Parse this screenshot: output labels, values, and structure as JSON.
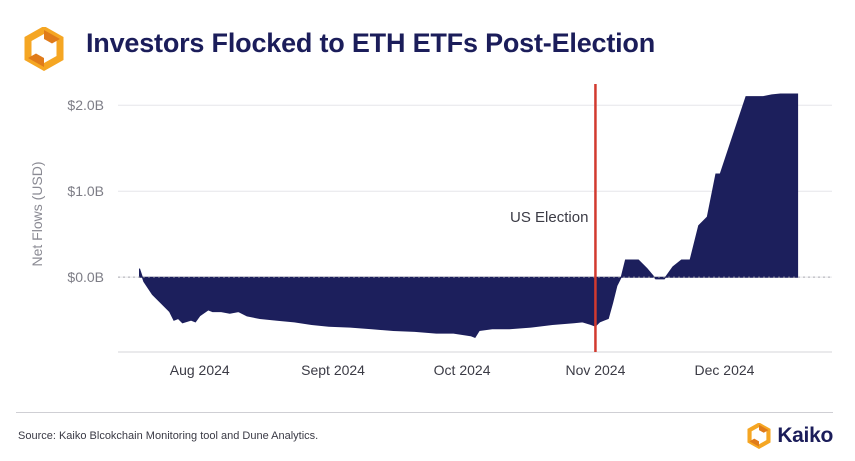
{
  "header": {
    "title": "Investors Flocked to ETH ETFs Post-Election",
    "logo_icon": "kaiko-hexagon-icon"
  },
  "footer": {
    "source": "Source: Kaiko Blcokchain Monitoring tool and Dune Analytics.",
    "brand_name": "Kaiko",
    "brand_icon": "kaiko-hexagon-icon"
  },
  "colors": {
    "fill": "#1c1f5c",
    "election_line": "#d23a2f",
    "logo_orange": "#f5a623",
    "logo_dark_orange": "#e07b1a"
  },
  "chart_data": {
    "type": "area",
    "ylabel": "Net Flows  (USD)",
    "ylim": [
      -0.87,
      2.2
    ],
    "yticks": [
      {
        "value": 0,
        "label": "$0.0B"
      },
      {
        "value": 1,
        "label": "$1.0B"
      },
      {
        "value": 2,
        "label": "$2.0B"
      }
    ],
    "xlim": [
      "2024-07-18",
      "2024-12-31"
    ],
    "xticks": [
      {
        "date": "2024-08-06",
        "label": "Aug 2024"
      },
      {
        "date": "2024-09-06",
        "label": "Sept 2024"
      },
      {
        "date": "2024-10-06",
        "label": "Oct 2024"
      },
      {
        "date": "2024-11-06",
        "label": "Nov 2024"
      },
      {
        "date": "2024-12-06",
        "label": "Dec 2024"
      }
    ],
    "grid": "horizontal",
    "annotation": {
      "date": "2024-11-06",
      "label": "US Election"
    },
    "series": [
      {
        "x": [
          "2024-07-23",
          "2024-07-24",
          "2024-07-26",
          "2024-07-28",
          "2024-07-30",
          "2024-07-31",
          "2024-08-01",
          "2024-08-02",
          "2024-08-04",
          "2024-08-05",
          "2024-08-06",
          "2024-08-08",
          "2024-08-09",
          "2024-08-11",
          "2024-08-13",
          "2024-08-15",
          "2024-08-17",
          "2024-08-20",
          "2024-08-24",
          "2024-08-28",
          "2024-09-01",
          "2024-09-05",
          "2024-09-10",
          "2024-09-15",
          "2024-09-20",
          "2024-09-25",
          "2024-09-30",
          "2024-10-04",
          "2024-10-08",
          "2024-10-09",
          "2024-10-10",
          "2024-10-13",
          "2024-10-17",
          "2024-10-22",
          "2024-10-27",
          "2024-11-01",
          "2024-11-03",
          "2024-11-05",
          "2024-11-06",
          "2024-11-07",
          "2024-11-08",
          "2024-11-09",
          "2024-11-10",
          "2024-11-11",
          "2024-11-12",
          "2024-11-13",
          "2024-11-16",
          "2024-11-18",
          "2024-11-20",
          "2024-11-22",
          "2024-11-24",
          "2024-11-26",
          "2024-11-28",
          "2024-11-30",
          "2024-12-02",
          "2024-12-04",
          "2024-12-05",
          "2024-12-07",
          "2024-12-09",
          "2024-12-11",
          "2024-12-13",
          "2024-12-15",
          "2024-12-17",
          "2024-12-19",
          "2024-12-21",
          "2024-12-22",
          "2024-12-23"
        ],
        "y": [
          0.1,
          -0.05,
          -0.2,
          -0.3,
          -0.4,
          -0.5,
          -0.48,
          -0.53,
          -0.5,
          -0.52,
          -0.45,
          -0.38,
          -0.4,
          -0.4,
          -0.42,
          -0.4,
          -0.45,
          -0.48,
          -0.5,
          -0.52,
          -0.55,
          -0.57,
          -0.58,
          -0.6,
          -0.62,
          -0.63,
          -0.65,
          -0.65,
          -0.68,
          -0.7,
          -0.62,
          -0.6,
          -0.6,
          -0.58,
          -0.55,
          -0.53,
          -0.52,
          -0.55,
          -0.57,
          -0.52,
          -0.5,
          -0.48,
          -0.3,
          -0.1,
          0.0,
          0.2,
          0.2,
          0.1,
          -0.02,
          -0.02,
          0.12,
          0.2,
          0.2,
          0.6,
          0.7,
          1.2,
          1.2,
          1.5,
          1.8,
          2.1,
          2.1,
          2.1,
          2.12,
          2.13,
          2.13,
          2.13,
          2.13
        ]
      }
    ]
  }
}
